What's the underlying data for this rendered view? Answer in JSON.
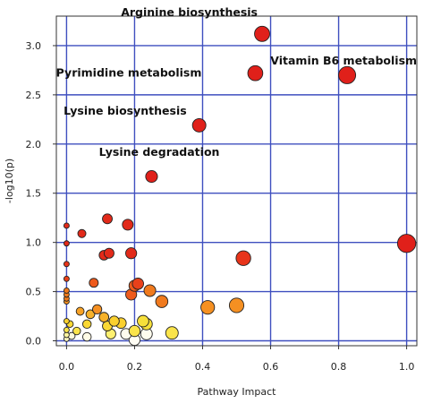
{
  "chart_data": {
    "type": "scatter",
    "xlabel": "Pathway Impact",
    "ylabel": "-log10(p)",
    "xlim": [
      -0.03,
      1.03
    ],
    "ylim": [
      -0.05,
      3.3
    ],
    "xticks": [
      "0.0",
      "0.2",
      "0.4",
      "0.6",
      "0.8",
      "1.0"
    ],
    "yticks": [
      "0.0",
      "0.5",
      "1.0",
      "1.5",
      "2.0",
      "2.5",
      "3.0"
    ],
    "grid": true,
    "annotations": [
      {
        "text": "Arginine biosynthesis",
        "x": 0.575,
        "y": 3.12
      },
      {
        "text": "Vitamin B6 metabolism",
        "x": 0.825,
        "y": 2.7
      },
      {
        "text": "Pyrimidine metabolism",
        "x": 0.555,
        "y": 2.72
      },
      {
        "text": "Lysine biosynthesis",
        "x": 0.39,
        "y": 2.19
      },
      {
        "text": "Lysine degradation",
        "x": 0.25,
        "y": 1.67
      }
    ],
    "points": [
      {
        "x": 0.575,
        "y": 3.12,
        "color": "#e0201a"
      },
      {
        "x": 0.825,
        "y": 2.7,
        "color": "#e0201a"
      },
      {
        "x": 0.555,
        "y": 2.72,
        "color": "#e0201a"
      },
      {
        "x": 0.39,
        "y": 2.19,
        "color": "#e0201a"
      },
      {
        "x": 0.25,
        "y": 1.67,
        "color": "#e0201a"
      },
      {
        "x": 1.0,
        "y": 0.99,
        "color": "#e0201a"
      },
      {
        "x": 0.52,
        "y": 0.84,
        "color": "#e8341a"
      },
      {
        "x": 0.0,
        "y": 1.17,
        "color": "#e22a1a"
      },
      {
        "x": 0.12,
        "y": 1.24,
        "color": "#e22a1a"
      },
      {
        "x": 0.18,
        "y": 1.18,
        "color": "#e22a1a"
      },
      {
        "x": 0.045,
        "y": 1.09,
        "color": "#e22a1a"
      },
      {
        "x": 0.0,
        "y": 0.99,
        "color": "#e22a1a"
      },
      {
        "x": 0.125,
        "y": 0.89,
        "color": "#e22a1a"
      },
      {
        "x": 0.11,
        "y": 0.87,
        "color": "#e22a1a"
      },
      {
        "x": 0.19,
        "y": 0.89,
        "color": "#e22a1a"
      },
      {
        "x": 0.0,
        "y": 0.78,
        "color": "#e8341a"
      },
      {
        "x": 0.0,
        "y": 0.63,
        "color": "#e8401a"
      },
      {
        "x": 0.08,
        "y": 0.59,
        "color": "#ee5a1c"
      },
      {
        "x": 0.21,
        "y": 0.58,
        "color": "#e8401a"
      },
      {
        "x": 0.2,
        "y": 0.56,
        "color": "#ee5a1c"
      },
      {
        "x": 0.245,
        "y": 0.51,
        "color": "#f07a1e"
      },
      {
        "x": 0.0,
        "y": 0.51,
        "color": "#f07a1e"
      },
      {
        "x": 0.0,
        "y": 0.47,
        "color": "#f07a1e"
      },
      {
        "x": 0.19,
        "y": 0.47,
        "color": "#ee5a1c"
      },
      {
        "x": 0.0,
        "y": 0.43,
        "color": "#f07a1e"
      },
      {
        "x": 0.28,
        "y": 0.4,
        "color": "#f07a1e"
      },
      {
        "x": 0.0,
        "y": 0.4,
        "color": "#f59022"
      },
      {
        "x": 0.09,
        "y": 0.32,
        "color": "#f59022"
      },
      {
        "x": 0.04,
        "y": 0.3,
        "color": "#f7a226"
      },
      {
        "x": 0.415,
        "y": 0.34,
        "color": "#f59022"
      },
      {
        "x": 0.5,
        "y": 0.36,
        "color": "#f59022"
      },
      {
        "x": 0.07,
        "y": 0.27,
        "color": "#f7b22a"
      },
      {
        "x": 0.11,
        "y": 0.24,
        "color": "#f7b22a"
      },
      {
        "x": 0.14,
        "y": 0.2,
        "color": "#fad02e"
      },
      {
        "x": 0.16,
        "y": 0.18,
        "color": "#fad02e"
      },
      {
        "x": 0.0,
        "y": 0.2,
        "color": "#fad02e"
      },
      {
        "x": 0.01,
        "y": 0.17,
        "color": "#fad834"
      },
      {
        "x": 0.06,
        "y": 0.17,
        "color": "#fad834"
      },
      {
        "x": 0.12,
        "y": 0.15,
        "color": "#fad834"
      },
      {
        "x": 0.225,
        "y": 0.2,
        "color": "#f7e03a"
      },
      {
        "x": 0.235,
        "y": 0.17,
        "color": "#f7e03a"
      },
      {
        "x": 0.0,
        "y": 0.11,
        "color": "#fbe44a"
      },
      {
        "x": 0.03,
        "y": 0.1,
        "color": "#fbe44a"
      },
      {
        "x": 0.2,
        "y": 0.1,
        "color": "#fbe44a"
      },
      {
        "x": 0.31,
        "y": 0.08,
        "color": "#fbe44a"
      },
      {
        "x": 0.13,
        "y": 0.07,
        "color": "#fdf070"
      },
      {
        "x": 0.0,
        "y": 0.06,
        "color": "#fef6a0"
      },
      {
        "x": 0.0,
        "y": 0.02,
        "color": "#fff8c0"
      },
      {
        "x": 0.015,
        "y": 0.05,
        "color": "#fffadc"
      },
      {
        "x": 0.06,
        "y": 0.04,
        "color": "#fffbe6"
      },
      {
        "x": 0.175,
        "y": 0.07,
        "color": "#fffcee"
      },
      {
        "x": 0.235,
        "y": 0.07,
        "color": "#fffcee"
      },
      {
        "x": 0.2,
        "y": 0.01,
        "color": "#fffdf4"
      }
    ]
  }
}
